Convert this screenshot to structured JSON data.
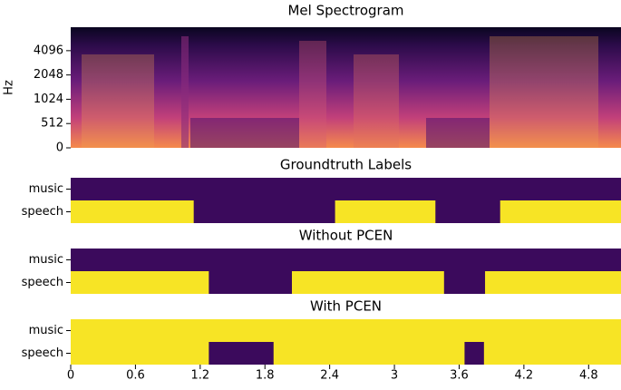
{
  "chart_data": [
    {
      "type": "spectrogram",
      "title": "Mel Spectrogram",
      "ylabel": "Hz",
      "yscale": "symlog",
      "ylim": [
        0,
        8000
      ],
      "yticks": [
        0,
        512,
        1024,
        2048,
        4096
      ],
      "xlim": [
        0,
        5.1
      ]
    },
    {
      "type": "labels",
      "title": "Groundtruth Labels",
      "on_color": "#f7e425",
      "off_color": "#3b0a5c",
      "xlim": [
        0,
        5.1
      ],
      "rows": [
        {
          "name": "music",
          "segments": []
        },
        {
          "name": "speech",
          "segments": [
            {
              "start": 0,
              "end": 1.14
            },
            {
              "start": 2.45,
              "end": 3.38
            },
            {
              "start": 3.98,
              "end": 5.1
            }
          ]
        }
      ]
    },
    {
      "type": "labels",
      "title": "Without PCEN",
      "on_color": "#f7e425",
      "off_color": "#3b0a5c",
      "xlim": [
        0,
        5.1
      ],
      "rows": [
        {
          "name": "music",
          "segments": []
        },
        {
          "name": "speech",
          "segments": [
            {
              "start": 0,
              "end": 1.28
            },
            {
              "start": 2.05,
              "end": 3.46
            },
            {
              "start": 3.84,
              "end": 5.1
            }
          ]
        }
      ]
    },
    {
      "type": "labels",
      "title": "With PCEN",
      "on_color": "#f7e425",
      "off_color": "#3b0a5c",
      "xlim": [
        0,
        5.1
      ],
      "xticks": [
        0,
        0.6,
        1.2,
        1.8,
        2.4,
        3,
        3.6,
        4.2,
        4.8
      ],
      "rows": [
        {
          "name": "music",
          "segments": [
            {
              "start": 0,
              "end": 5.1
            }
          ]
        },
        {
          "name": "speech",
          "segments": [
            {
              "start": 0,
              "end": 1.28
            },
            {
              "start": 1.88,
              "end": 3.65
            },
            {
              "start": 3.83,
              "end": 5.1
            }
          ]
        }
      ]
    }
  ]
}
